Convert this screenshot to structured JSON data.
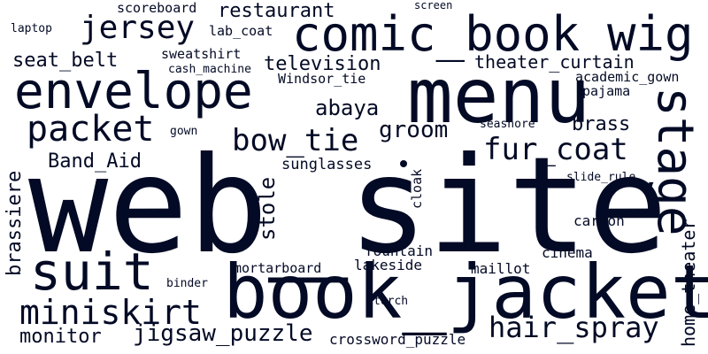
{
  "cloud": {
    "text_color": "#030a25",
    "background_color": "#ffffff",
    "words": {
      "web_site": "web_site",
      "book_jacket": "book_jacket",
      "menu": "menu",
      "envelope": "envelope",
      "comic_book": "comic_book",
      "wig": "wig",
      "suit": "suit",
      "stage": "stage",
      "packet": "packet",
      "miniskirt": "miniskirt",
      "hair_spray": "hair_spray",
      "fur_coat": "fur_coat",
      "bow_tie": "bow_tie",
      "jersey": "jersey",
      "jigsaw_puzzle": "jigsaw_puzzle",
      "monitor": "monitor",
      "restaurant": "restaurant",
      "television": "television",
      "seat_belt": "seat_belt",
      "Band_Aid": "Band_Aid",
      "abaya": "abaya",
      "groom": "groom",
      "brass": "brass",
      "theater_curtain": "theater_curtain",
      "sunglasses": "sunglasses",
      "crossword_puzzle": "crossword_puzzle",
      "fountain": "fountain",
      "lakeside": "lakeside",
      "maillot": "maillot",
      "cinema": "cinema",
      "carton": "carton",
      "mortarboard": "mortarboard",
      "academic_gown": "academic_gown",
      "pajama": "pajama",
      "Windsor_tie": "Windsor_tie",
      "sweatshirt": "sweatshirt",
      "lab_coat": "lab_coat",
      "scoreboard": "scoreboard",
      "cash_machine": "cash_machine",
      "seashore": "seashore",
      "slide_rule": "slide_rule",
      "gown": "gown",
      "binder": "binder",
      "torch": "torch",
      "laptop": "laptop",
      "screen": "screen",
      "brassiere": "brassiere",
      "stole": "stole",
      "cloak": "cloak",
      "home_theater": "home_theater"
    }
  }
}
